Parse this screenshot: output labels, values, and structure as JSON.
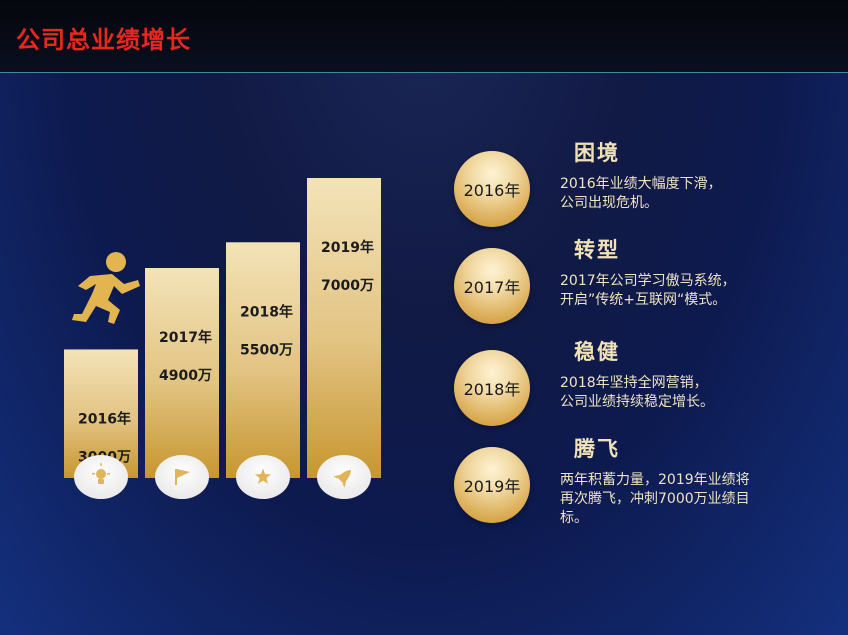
{
  "header": {
    "title": "公司总业绩增长"
  },
  "chart_data": {
    "type": "bar",
    "categories": [
      "2016年",
      "2017年",
      "2018年",
      "2019年"
    ],
    "values": [
      3000,
      4900,
      5500,
      7000
    ],
    "value_labels": [
      "3000万",
      "4900万",
      "5500万",
      "7000万"
    ],
    "bar_icons": [
      "lightbulb-icon",
      "flag-icon",
      "star-icon",
      "rocket-icon"
    ],
    "decor_icon": "running-man-icon",
    "colors": {
      "bar_top": "#f3e3b8",
      "bar_bottom": "#c7962f"
    }
  },
  "timeline": [
    {
      "year": "2016年",
      "phase": "困境",
      "desc": [
        "2016年业绩大幅度下滑，",
        "公司出现危机。"
      ]
    },
    {
      "year": "2017年",
      "phase": "转型",
      "desc": [
        "2017年公司学习傲马系统，",
        "开启”传统+互联网“模式。"
      ]
    },
    {
      "year": "2018年",
      "phase": "稳健",
      "desc": [
        "2018年坚持全网营销，",
        "公司业绩持续稳定增长。"
      ]
    },
    {
      "year": "2019年",
      "phase": "腾飞",
      "desc": [
        "两年积蓄力量，2019年业绩将",
        "再次腾飞，冲刺7000万业绩目",
        "标。"
      ]
    }
  ]
}
